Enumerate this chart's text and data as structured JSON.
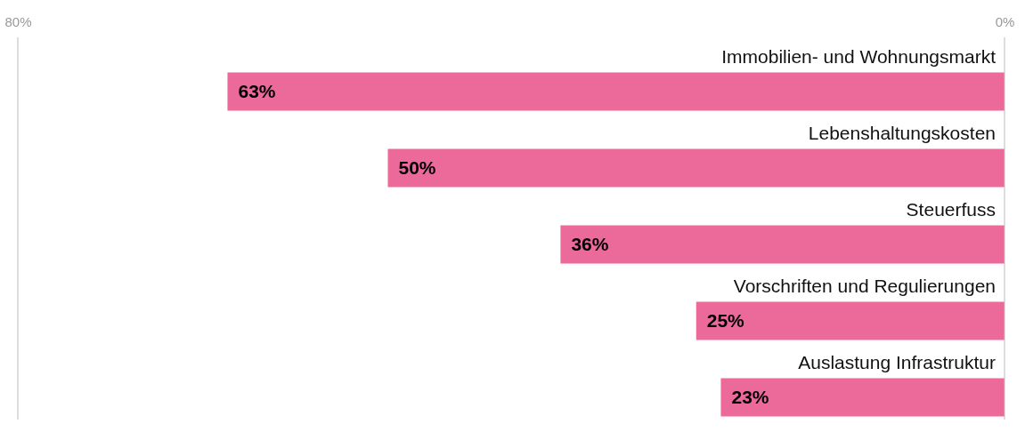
{
  "chart_data": {
    "type": "bar",
    "orientation": "horizontal",
    "categories": [
      "Immobilien- und Wohnungsmarkt",
      "Lebenshaltungskosten",
      "Steuerfuss",
      "Vorschriften und Regulierungen",
      "Auslastung Infrastruktur"
    ],
    "values": [
      63,
      50,
      36,
      25,
      23
    ],
    "value_labels": [
      "63%",
      "50%",
      "36%",
      "25%",
      "23%"
    ],
    "color": "#ec6a9a",
    "xlim": [
      80,
      0
    ],
    "xticks": [
      {
        "value": 80,
        "label": "80%"
      },
      {
        "value": 0,
        "label": "0%"
      }
    ]
  }
}
